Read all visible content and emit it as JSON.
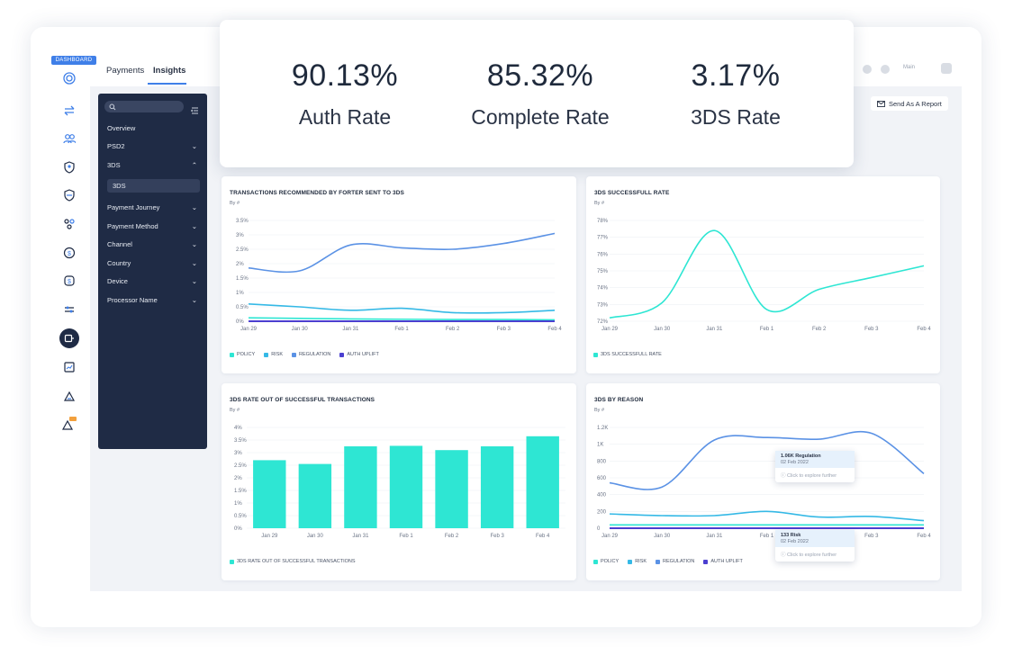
{
  "dashboard_badge": "DASHBOARD",
  "tabs": [
    {
      "label": "Payments"
    },
    {
      "label": "Insights"
    }
  ],
  "header_right": {
    "user_label": "Main"
  },
  "sidebar": {
    "items": [
      {
        "label": "Overview",
        "chevron": ""
      },
      {
        "label": "PSD2",
        "chevron": "⌄"
      },
      {
        "label": "3DS",
        "chevron": "⌃"
      },
      {
        "label": "Payment Journey",
        "chevron": "⌄"
      },
      {
        "label": "Payment Method",
        "chevron": "⌄"
      },
      {
        "label": "Channel",
        "chevron": "⌄"
      },
      {
        "label": "Country",
        "chevron": "⌄"
      },
      {
        "label": "Device",
        "chevron": "⌄"
      },
      {
        "label": "Processor Name",
        "chevron": "⌄"
      }
    ],
    "selected_sub": "3DS"
  },
  "report_button": {
    "label": "Send As A Report"
  },
  "kpis": [
    {
      "value": "90.13%",
      "label": "Auth Rate"
    },
    {
      "value": "85.32%",
      "label": "Complete Rate"
    },
    {
      "value": "3.17%",
      "label": "3DS Rate"
    }
  ],
  "colors": {
    "policy": "#2ee6d3",
    "risk": "#35b9e6",
    "regulation": "#5b92e5",
    "auth_uplift": "#4b3fd0",
    "sidebar_bg": "#1f2b45",
    "accent": "#3f7fe8"
  },
  "chart_data": [
    {
      "type": "line",
      "title": "TRANSACTIONS RECOMMENDED BY FORTER SENT TO 3DS",
      "subtitle": "By #",
      "x": [
        "Jan 29",
        "Jan 30",
        "Jan 31",
        "Feb 1",
        "Feb 2",
        "Feb 3",
        "Feb 4"
      ],
      "yticks": [
        "0%",
        "0.5%",
        "1%",
        "1.5%",
        "2%",
        "2.5%",
        "3%",
        "3.5%"
      ],
      "ylim": [
        0,
        3.5
      ],
      "series": [
        {
          "name": "POLICY",
          "values": [
            0.12,
            0.1,
            0.08,
            0.07,
            0.06,
            0.06,
            0.05
          ]
        },
        {
          "name": "RISK",
          "values": [
            0.6,
            0.5,
            0.38,
            0.45,
            0.3,
            0.3,
            0.38
          ]
        },
        {
          "name": "REGULATION",
          "values": [
            1.85,
            1.75,
            2.65,
            2.55,
            2.5,
            2.7,
            3.05
          ]
        },
        {
          "name": "AUTH UPLIFT",
          "values": [
            0.0,
            0.0,
            0.0,
            0.0,
            0.0,
            0.0,
            0.0
          ]
        }
      ]
    },
    {
      "type": "line",
      "title": "3DS SUCCESSFULL RATE",
      "subtitle": "By #",
      "x": [
        "Jan 29",
        "Jan 30",
        "Jan 31",
        "Feb 1",
        "Feb 2",
        "Feb 3",
        "Feb 4"
      ],
      "yticks": [
        "72%",
        "73%",
        "74%",
        "75%",
        "76%",
        "77%",
        "78%"
      ],
      "ylim": [
        72,
        78
      ],
      "series": [
        {
          "name": "3DS SUCCESSFULL RATE",
          "values": [
            72.2,
            73.1,
            77.4,
            72.7,
            73.9,
            74.6,
            75.3
          ]
        }
      ]
    },
    {
      "type": "bar",
      "title": "3DS RATE OUT OF SUCCESSFUL TRANSACTIONS",
      "subtitle": "By #",
      "categories": [
        "Jan 29",
        "Jan 30",
        "Jan 31",
        "Feb 1",
        "Feb 2",
        "Feb 3",
        "Feb 4"
      ],
      "yticks": [
        "0%",
        "0.5%",
        "1%",
        "1.5%",
        "2%",
        "2.5%",
        "3%",
        "3.5%",
        "4%"
      ],
      "ylim": [
        0,
        4
      ],
      "series": [
        {
          "name": "3DS RATE OUT OF SUCCESSFUL TRANSACTIONS",
          "values": [
            2.7,
            2.55,
            3.25,
            3.27,
            3.1,
            3.25,
            3.65
          ]
        }
      ]
    },
    {
      "type": "line",
      "title": "3DS BY REASON",
      "subtitle": "By #",
      "x": [
        "Jan 29",
        "Jan 30",
        "Jan 31",
        "Feb 1",
        "Feb 2",
        "Feb 3",
        "Feb 4"
      ],
      "yticks": [
        "0",
        "200",
        "400",
        "600",
        "800",
        "1K",
        "1.2K"
      ],
      "ylim": [
        0,
        1200
      ],
      "series": [
        {
          "name": "POLICY",
          "values": [
            40,
            40,
            40,
            40,
            40,
            40,
            40
          ]
        },
        {
          "name": "RISK",
          "values": [
            170,
            150,
            150,
            200,
            133,
            140,
            90
          ]
        },
        {
          "name": "REGULATION",
          "values": [
            540,
            490,
            1050,
            1080,
            1060,
            1130,
            650
          ]
        },
        {
          "name": "AUTH UPLIFT",
          "values": [
            0,
            0,
            0,
            0,
            0,
            0,
            0
          ]
        }
      ],
      "tooltips": [
        {
          "title": "1.06K Regulation",
          "date": "02 Feb 2022",
          "action": "Click to explore further"
        },
        {
          "title": "133 Risk",
          "date": "02 Feb 2022",
          "action": "Click to explore further"
        }
      ]
    }
  ]
}
